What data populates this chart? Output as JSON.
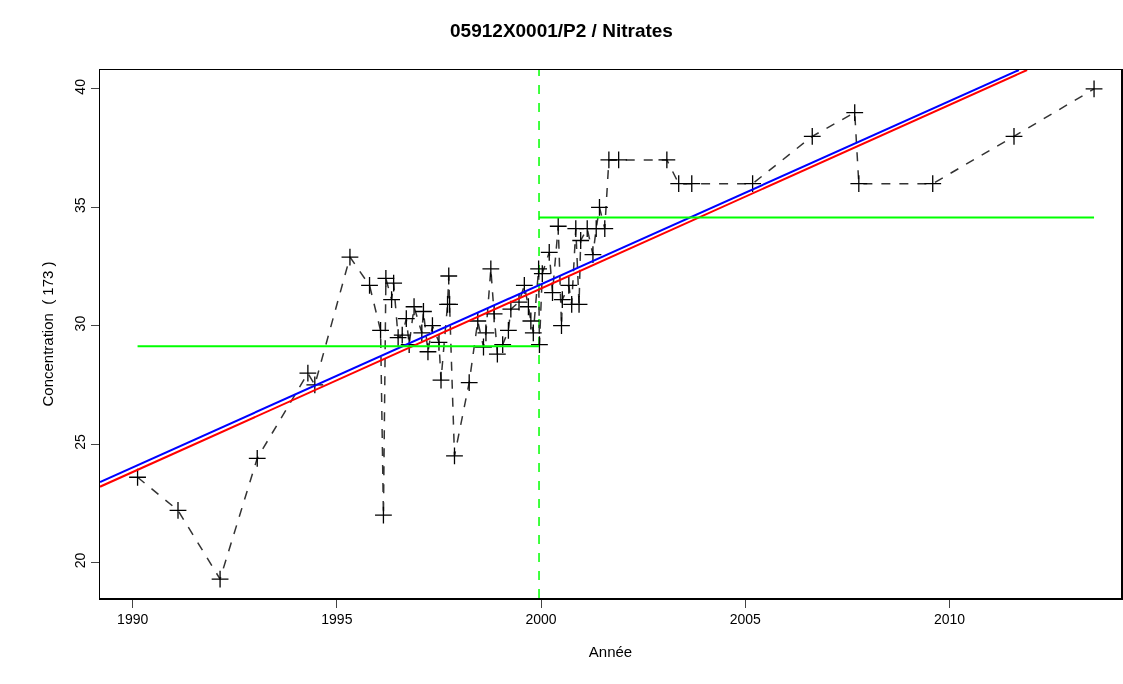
{
  "chart_data": {
    "type": "line",
    "title": "05912X0001/P2 / Nitrates",
    "xlabel": "Année",
    "ylabel": "Concentration  ( 173 )",
    "xlim": [
      1989.2,
      2014.2
    ],
    "xticks": [
      1990,
      1995,
      2000,
      2005,
      2010
    ],
    "ylim": [
      18.5,
      40.8
    ],
    "yticks": [
      20,
      25,
      30,
      35,
      40
    ],
    "grid": false,
    "ref_lines": [
      {
        "axis": "x",
        "value": 1999.95,
        "color": "#00ff00",
        "line_style": "dashed"
      }
    ],
    "series": [
      {
        "color": "#333333",
        "marker": "cross",
        "line_style": "dashed",
        "x": [
          1990.12,
          1991.11,
          1992.14,
          1993.05,
          1994.29,
          1994.46,
          1995.32,
          1995.8,
          1996.07,
          1996.14,
          1996.2,
          1996.34,
          1996.39,
          1996.5,
          1996.6,
          1996.7,
          1996.77,
          1996.89,
          1997.08,
          1997.12,
          1997.23,
          1997.34,
          1997.5,
          1997.55,
          1997.71,
          1997.74,
          1997.76,
          1997.88,
          1998.24,
          1998.45,
          1998.59,
          1998.65,
          1998.77,
          1998.85,
          1998.93,
          1999.06,
          1999.2,
          1999.26,
          1999.46,
          1999.59,
          1999.69,
          1999.75,
          1999.81,
          1999.94,
          1999.96,
          2000.03,
          2000.2,
          2000.28,
          2000.42,
          2000.5,
          2000.52,
          2000.68,
          2000.75,
          2000.85,
          2000.93,
          2000.97,
          2001.13,
          2001.27,
          2001.35,
          2001.43,
          2001.56,
          2001.66,
          2001.9,
          2003.08,
          2003.37,
          2003.69,
          2005.18,
          2006.64,
          2007.68,
          2007.78,
          2009.59,
          2011.58,
          2013.54
        ],
        "values": [
          23.6,
          22.2,
          19.3,
          24.4,
          28.0,
          27.5,
          32.9,
          31.7,
          29.8,
          22.0,
          32.0,
          31.1,
          31.8,
          29.5,
          29.6,
          30.3,
          29.2,
          30.8,
          29.7,
          30.6,
          28.9,
          30.0,
          29.3,
          27.7,
          30.9,
          32.1,
          30.9,
          24.5,
          27.6,
          30.2,
          29.1,
          29.7,
          32.4,
          30.5,
          28.8,
          29.2,
          29.8,
          30.7,
          31.0,
          31.7,
          30.8,
          30.2,
          29.7,
          32.4,
          29.2,
          32.2,
          33.1,
          31.4,
          34.2,
          30.0,
          31.1,
          31.7,
          30.9,
          34.1,
          30.9,
          33.6,
          34.1,
          33.0,
          34.1,
          35.0,
          34.1,
          37.0,
          37.0,
          37.0,
          36.0,
          36.0,
          36.0,
          38.0,
          39.0,
          36.0,
          36.0,
          38.0,
          40.0
        ]
      },
      {
        "color": "#0000ff",
        "marker": "none",
        "line_style": "solid",
        "x": [
          1989.2,
          2011.7
        ],
        "values": [
          23.4,
          40.8
        ]
      },
      {
        "color": "#ff0000",
        "marker": "none",
        "line_style": "solid",
        "x": [
          1989.2,
          2011.9
        ],
        "values": [
          23.2,
          40.8
        ]
      },
      {
        "color": "#00ff00",
        "marker": "none",
        "line_style": "solid",
        "x": [
          1990.12,
          1999.95
        ],
        "values": [
          29.13,
          29.13
        ]
      },
      {
        "color": "#00ff00",
        "marker": "none",
        "line_style": "solid",
        "x": [
          1999.95,
          2013.54
        ],
        "values": [
          34.57,
          34.57
        ]
      }
    ]
  }
}
